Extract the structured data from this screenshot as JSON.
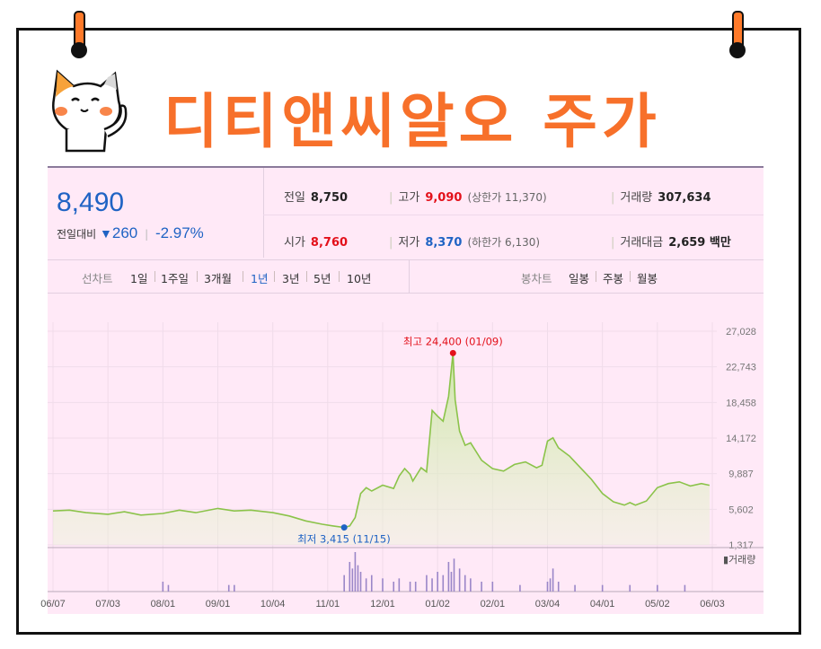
{
  "title": "디티앤씨알오 주가",
  "summary": {
    "price": "8,490",
    "change_label": "전일대비",
    "change_arrow": "▼",
    "change_value": "260",
    "change_pct": "-2.97%",
    "prev_label": "전일",
    "prev_value": "8,750",
    "open_label": "시가",
    "open_value": "8,760",
    "high_label": "고가",
    "high_value": "9,090",
    "upper_limit": "(상한가 11,370)",
    "low_label": "저가",
    "low_value": "8,370",
    "lower_limit": "(하한가 6,130)",
    "volume_label": "거래량",
    "volume_value": "307,634",
    "amount_label": "거래대금",
    "amount_value": "2,659 백만"
  },
  "tabs": {
    "line_label": "선차트",
    "periods": [
      "1일",
      "1주일",
      "3개월",
      "1년",
      "3년",
      "5년",
      "10년"
    ],
    "active_period": "1년",
    "candle_label": "봉차트",
    "candles": [
      "일봉",
      "주봉",
      "월봉"
    ]
  },
  "colors": {
    "accent": "#f7702a",
    "price_blue": "#1f63c4",
    "up_red": "#e3101a",
    "line_green": "#8bc34a",
    "panel_bg": "#ffe9f7"
  },
  "chart_data": {
    "type": "area",
    "x_ticks": [
      "06/07",
      "07/03",
      "08/01",
      "09/01",
      "10/04",
      "11/01",
      "12/01",
      "01/02",
      "02/01",
      "03/04",
      "04/01",
      "05/02",
      "06/03"
    ],
    "y_ticks": [
      "27,028",
      "22,743",
      "18,458",
      "14,172",
      "9,887",
      "5,602",
      "1,317"
    ],
    "ylim": [
      1317,
      27028
    ],
    "x_index_range": [
      0,
      12
    ],
    "series": [
      {
        "x": [
          0,
          0.3,
          0.6,
          1.0,
          1.3,
          1.6,
          2.0,
          2.3,
          2.6,
          3.0,
          3.3,
          3.6,
          4.0,
          4.3,
          4.6,
          4.9,
          5.1,
          5.3,
          5.4,
          5.5,
          5.6,
          5.7,
          5.8,
          6.0,
          6.2,
          6.3,
          6.4,
          6.5,
          6.55,
          6.7,
          6.8,
          6.9,
          7.0,
          7.1,
          7.2,
          7.28,
          7.32,
          7.4,
          7.5,
          7.6,
          7.8,
          8.0,
          8.2,
          8.4,
          8.6,
          8.8,
          8.9,
          9.0,
          9.1,
          9.2,
          9.4,
          9.6,
          9.8,
          10.0,
          10.2,
          10.4,
          10.5,
          10.6,
          10.8,
          11.0,
          11.2,
          11.4,
          11.6,
          11.8,
          11.95
        ],
        "y": [
          5400,
          5500,
          5200,
          5000,
          5300,
          4900,
          5100,
          5500,
          5200,
          5700,
          5400,
          5500,
          5200,
          4800,
          4200,
          3800,
          3600,
          3415,
          3600,
          4600,
          7500,
          8200,
          7800,
          8500,
          8100,
          9600,
          10500,
          9800,
          9000,
          10600,
          10100,
          17500,
          16800,
          16200,
          19200,
          24400,
          18800,
          15000,
          13300,
          13600,
          11500,
          10500,
          10200,
          11000,
          11300,
          10600,
          10900,
          13800,
          14200,
          13000,
          12000,
          10600,
          9200,
          7500,
          6500,
          6100,
          6400,
          6100,
          6600,
          8200,
          8700,
          8900,
          8400,
          8700,
          8490
        ]
      }
    ],
    "annotations": {
      "high_label": "최고 24,400 (01/09)",
      "low_label": "최저 3,415 (11/15)",
      "high_point": {
        "x": 7.28,
        "y": 24400
      },
      "low_point": {
        "x": 5.3,
        "y": 3415
      },
      "volume_label": "거래량"
    },
    "volume": {
      "x": [
        2.0,
        2.1,
        3.2,
        3.3,
        5.3,
        5.4,
        5.45,
        5.5,
        5.55,
        5.6,
        5.7,
        5.8,
        6.0,
        6.2,
        6.3,
        6.5,
        6.6,
        6.8,
        6.9,
        7.0,
        7.1,
        7.2,
        7.25,
        7.3,
        7.4,
        7.5,
        7.6,
        7.8,
        8.0,
        8.5,
        9.0,
        9.05,
        9.1,
        9.2,
        9.5,
        10.0,
        10.5,
        11.0,
        11.5
      ],
      "v": [
        3,
        2,
        2,
        2,
        5,
        9,
        7,
        12,
        8,
        6,
        4,
        5,
        4,
        3,
        4,
        3,
        3,
        5,
        4,
        6,
        5,
        9,
        6,
        10,
        7,
        5,
        4,
        3,
        3,
        2,
        3,
        4,
        7,
        3,
        2,
        2,
        2,
        2,
        2
      ]
    }
  }
}
